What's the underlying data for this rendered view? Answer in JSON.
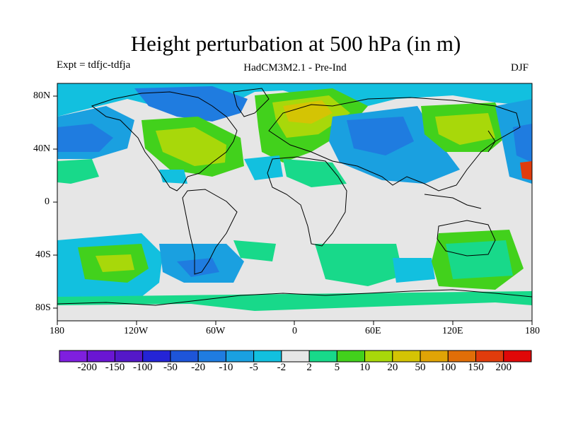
{
  "title": "Height perturbation at 500 hPa (in m)",
  "subtitle_left": "Expt = tdfjc-tdfja",
  "subtitle_center": "HadCM3M2.1 - Pre-Ind",
  "subtitle_right": "DJF",
  "map": {
    "lon_ticks": [
      "180",
      "120W",
      "60W",
      "0",
      "60E",
      "120E",
      "180"
    ],
    "lat_ticks": [
      "80N",
      "40N",
      "0",
      "40S",
      "80S"
    ],
    "background_color": "#e6e6e6",
    "coastline_color": "#000000"
  },
  "colorbar": {
    "labels": [
      "-200",
      "-150",
      "-100",
      "-50",
      "-20",
      "-10",
      "-5",
      "-2",
      "2",
      "5",
      "10",
      "20",
      "50",
      "100",
      "150",
      "200"
    ],
    "colors": [
      "#7f1fdf",
      "#6a16d2",
      "#5418c8",
      "#2424d6",
      "#1e55d9",
      "#1f7ce0",
      "#1aa0e0",
      "#12c0df",
      "#e6e6e6",
      "#18d98a",
      "#42d11c",
      "#a8d80a",
      "#d4c404",
      "#e0a406",
      "#e06e08",
      "#e03c0c",
      "#e00808"
    ]
  }
}
